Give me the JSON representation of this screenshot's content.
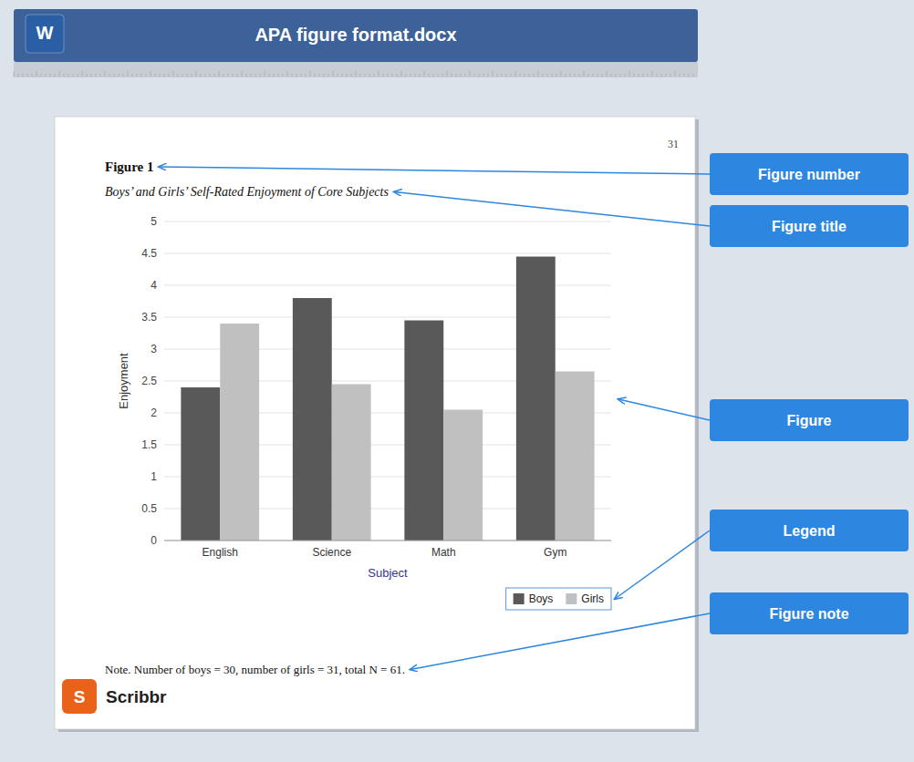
{
  "chart_data": {
    "type": "bar",
    "title": "Boys’ and Girls’ Self-Rated Enjoyment of Core Subjects",
    "categories": [
      "English",
      "Science",
      "Math",
      "Gym"
    ],
    "series": [
      {
        "name": "Boys",
        "color": "#595959",
        "values": [
          2.4,
          3.8,
          3.45,
          4.45
        ]
      },
      {
        "name": "Girls",
        "color": "#c0c0c0",
        "values": [
          3.4,
          2.45,
          2.05,
          2.65
        ]
      }
    ],
    "x_label": "Subject",
    "y_label": "Enjoyment",
    "ylim": [
      0,
      5
    ],
    "yticks": [
      0,
      0.5,
      1,
      1.5,
      2,
      2.5,
      3,
      3.5,
      4,
      4.5,
      5
    ],
    "grid": true,
    "legend": "bottom",
    "annotations": [
      "APA figure format.docx",
      "W",
      "31",
      "Figure 1",
      "Note. Number of boys = 30, number of girls = 31, total N = 61.",
      "S",
      "Scribbr",
      "Figure number",
      "Figure title",
      "Figure",
      "Legend",
      "Figure note"
    ]
  }
}
